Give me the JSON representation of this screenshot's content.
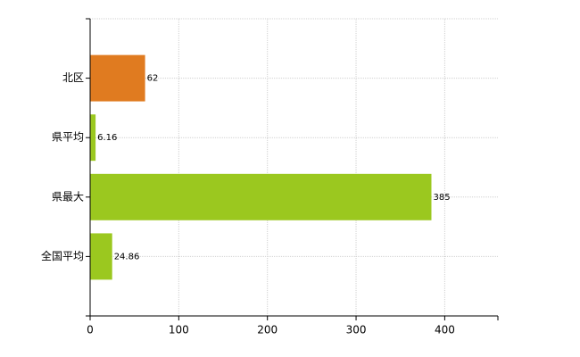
{
  "chart_data": {
    "type": "bar",
    "orientation": "horizontal",
    "categories": [
      "北区",
      "県平均",
      "県最大",
      "全国平均"
    ],
    "values": [
      62,
      6.16,
      385,
      24.86
    ],
    "colors": [
      "#e07b20",
      "#9bc81f",
      "#9bc81f",
      "#9bc81f"
    ],
    "xlim": [
      0,
      460
    ],
    "xticks": [
      0,
      100,
      200,
      300,
      400
    ],
    "grid": true
  }
}
